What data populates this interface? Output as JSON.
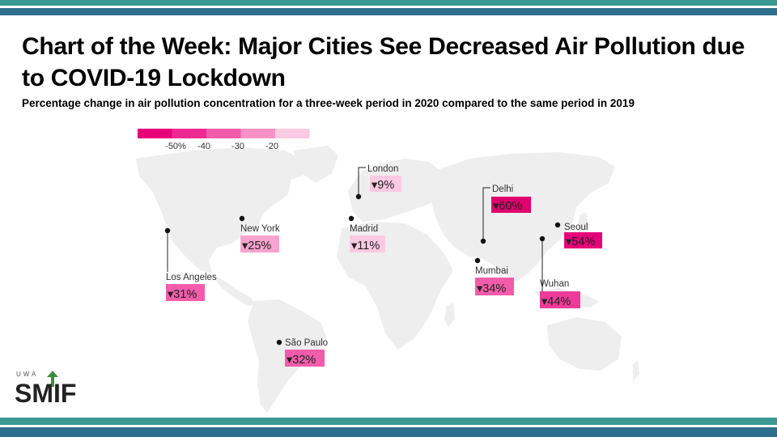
{
  "title": "Chart of the Week: Major Cities See Decreased Air Pollution due to COVID-19 Lockdown",
  "subtitle": "Percentage change in air pollution concentration for a three-week period in 2020 compared to the same period in 2019",
  "logo": {
    "top_text": "UWA",
    "main_text": "SMIF",
    "icon": "upward-arrow-icon"
  },
  "colors": {
    "band_teal": "#3a9a92",
    "band_dark": "#2d6f8c",
    "land": "#eeeeee",
    "label_text": "#333333",
    "dot": "#111111"
  },
  "chart_data": {
    "type": "map",
    "legend": {
      "tick_labels": [
        "-50%",
        "-40",
        "-30",
        "-20"
      ],
      "swatches": [
        "#e8007a",
        "#ee2a92",
        "#f25cab",
        "#f792c6",
        "#fbc9e2"
      ]
    },
    "cities": [
      {
        "name": "London",
        "value_label": "▾9%",
        "value": -9,
        "color": "#fbc9e2"
      },
      {
        "name": "Delhi",
        "value_label": "▾60%",
        "value": -60,
        "color": "#e0006e"
      },
      {
        "name": "New York",
        "value_label": "▾25%",
        "value": -25,
        "color": "#f7a3cf"
      },
      {
        "name": "Madrid",
        "value_label": "▾11%",
        "value": -11,
        "color": "#fbc9e2"
      },
      {
        "name": "Seoul",
        "value_label": "▾54%",
        "value": -54,
        "color": "#e6007a"
      },
      {
        "name": "Los Angeles",
        "value_label": "▾31%",
        "value": -31,
        "color": "#f25cab"
      },
      {
        "name": "Mumbai",
        "value_label": "▾34%",
        "value": -34,
        "color": "#f25cab"
      },
      {
        "name": "Wuhan",
        "value_label": "▾44%",
        "value": -44,
        "color": "#ee3b9a"
      },
      {
        "name": "São Paulo",
        "value_label": "▾32%",
        "value": -32,
        "color": "#f25cab"
      }
    ]
  }
}
